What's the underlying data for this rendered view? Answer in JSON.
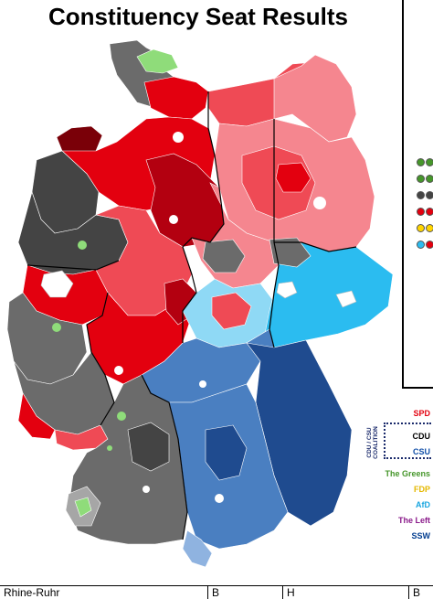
{
  "title": "Constituency Seat Results",
  "colors": {
    "spd": "#e3000f",
    "spd_light": "#f5868f",
    "spd_mid": "#ef4a55",
    "spd_dark": "#b30010",
    "spd_darkest": "#7a0008",
    "cdu_dark": "#444444",
    "cdu_mid": "#6b6b6b",
    "cdu_light": "#a6a6a6",
    "csu": "#4a7fc1",
    "csu_dark": "#1f4b8f",
    "csu_light": "#8fb3e0",
    "afd": "#2bbcf0",
    "afd_light": "#8fd9f5",
    "green": "#46962b",
    "green_light": "#8fdc7a",
    "fdp": "#ffd500",
    "left": "#be3075",
    "ssw": "#003c8f"
  },
  "legend": {
    "items": [
      {
        "label": "SPD",
        "color": "#e3000f"
      },
      {
        "label": "CDU",
        "color": "#000000"
      },
      {
        "label": "CSU",
        "color": "#0f4ea8"
      },
      {
        "label": "The Greens",
        "color": "#46962b"
      },
      {
        "label": "FDP",
        "color": "#e5b800"
      },
      {
        "label": "AfD",
        "color": "#1aa6e0"
      },
      {
        "label": "The Left",
        "color": "#8a1a8a"
      },
      {
        "label": "SSW",
        "color": "#003c8f"
      }
    ],
    "coalition_label": "CDU / CSU\nCOALITION"
  },
  "side_dots": [
    "#46962b",
    "#46962b",
    "#46962b",
    "#46962b",
    "#444444",
    "#444444",
    "#e3000f",
    "#e3000f",
    "#ffd500",
    "#ffd500",
    "#2bbcf0",
    "#e3000f"
  ],
  "table": {
    "cells": [
      "Rhine-Ruhr",
      "B",
      "H",
      "B"
    ]
  }
}
